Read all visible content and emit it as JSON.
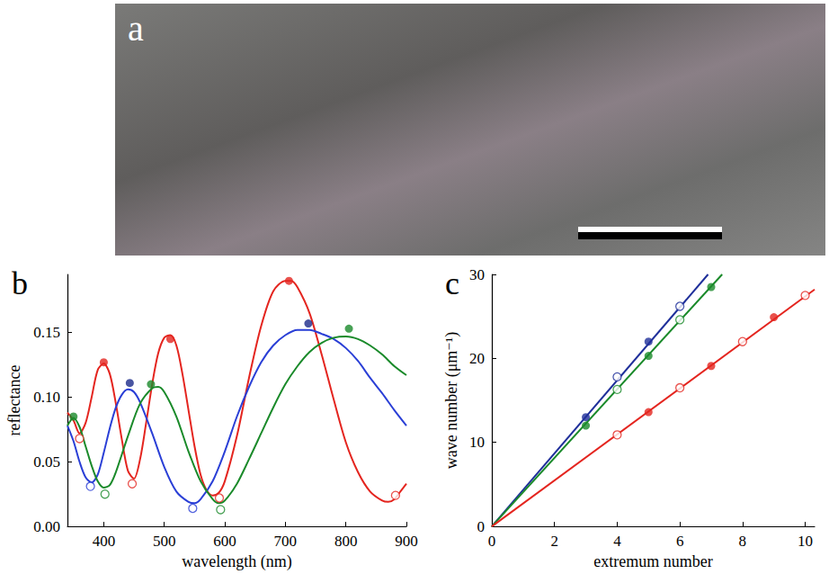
{
  "photo": {
    "label": "a"
  },
  "chart_data": [
    {
      "type": "line",
      "title": "b",
      "x_label": "wavelength (nm)",
      "y_label": "reflectance",
      "xlim": [
        340,
        900
      ],
      "xticks": [
        400,
        500,
        600,
        700,
        800,
        900
      ],
      "ylim": [
        0,
        0.195
      ],
      "yticks": [
        {
          "value": 0,
          "label": "0.00"
        },
        0.05,
        {
          "value": 0.1,
          "label": "0.10"
        },
        0.15
      ],
      "grid": false,
      "series": [
        {
          "type": "line",
          "color": "#e4251f",
          "x": [
            340,
            350,
            360,
            370,
            380,
            390,
            400,
            410,
            420,
            430,
            440,
            450,
            460,
            470,
            480,
            490,
            500,
            510,
            520,
            530,
            540,
            550,
            560,
            570,
            580,
            590,
            600,
            620,
            640,
            660,
            680,
            700,
            710,
            720,
            740,
            760,
            780,
            800,
            820,
            840,
            860,
            870,
            880,
            890,
            900
          ],
          "values": [
            0.088,
            0.082,
            0.072,
            0.08,
            0.1,
            0.121,
            0.126,
            0.118,
            0.095,
            0.067,
            0.043,
            0.037,
            0.052,
            0.08,
            0.11,
            0.134,
            0.146,
            0.148,
            0.14,
            0.118,
            0.09,
            0.062,
            0.04,
            0.028,
            0.024,
            0.026,
            0.035,
            0.07,
            0.115,
            0.155,
            0.182,
            0.19,
            0.19,
            0.185,
            0.165,
            0.133,
            0.098,
            0.065,
            0.042,
            0.027,
            0.02,
            0.019,
            0.021,
            0.027,
            0.033
          ]
        },
        {
          "type": "line",
          "color": "#2a3fd6",
          "x": [
            340,
            350,
            360,
            370,
            380,
            390,
            400,
            410,
            420,
            430,
            440,
            450,
            460,
            480,
            500,
            520,
            540,
            550,
            560,
            580,
            600,
            620,
            640,
            660,
            680,
            700,
            720,
            740,
            760,
            780,
            800,
            820,
            840,
            860,
            880,
            900
          ],
          "values": [
            0.078,
            0.066,
            0.05,
            0.038,
            0.034,
            0.04,
            0.057,
            0.076,
            0.092,
            0.102,
            0.106,
            0.104,
            0.096,
            0.072,
            0.046,
            0.027,
            0.019,
            0.018,
            0.021,
            0.035,
            0.058,
            0.085,
            0.108,
            0.127,
            0.14,
            0.148,
            0.152,
            0.152,
            0.149,
            0.145,
            0.138,
            0.128,
            0.115,
            0.103,
            0.09,
            0.078
          ]
        },
        {
          "type": "line",
          "color": "#1a8a2a",
          "x": [
            340,
            350,
            360,
            370,
            380,
            390,
            400,
            410,
            420,
            440,
            460,
            480,
            490,
            500,
            520,
            540,
            560,
            580,
            590,
            600,
            620,
            640,
            660,
            680,
            700,
            720,
            740,
            760,
            780,
            800,
            820,
            840,
            860,
            880,
            900
          ],
          "values": [
            0.078,
            0.084,
            0.077,
            0.062,
            0.047,
            0.035,
            0.03,
            0.032,
            0.042,
            0.07,
            0.095,
            0.107,
            0.108,
            0.104,
            0.085,
            0.058,
            0.035,
            0.021,
            0.018,
            0.02,
            0.033,
            0.052,
            0.072,
            0.092,
            0.11,
            0.124,
            0.135,
            0.142,
            0.146,
            0.147,
            0.145,
            0.14,
            0.133,
            0.124,
            0.117
          ]
        },
        {
          "type": "scatter",
          "marker": "filled",
          "color": "#e4251f",
          "x": [
            400,
            510,
            706
          ],
          "values": [
            0.127,
            0.145,
            0.19
          ]
        },
        {
          "type": "scatter",
          "marker": "open",
          "color": "#e4251f",
          "x": [
            360,
            447,
            591,
            882
          ],
          "values": [
            0.068,
            0.033,
            0.022,
            0.024
          ]
        },
        {
          "type": "scatter",
          "marker": "filled",
          "color": "#1c2a8a",
          "x": [
            443,
            738
          ],
          "values": [
            0.111,
            0.157
          ]
        },
        {
          "type": "scatter",
          "marker": "open",
          "color": "#2a3fd6",
          "x": [
            378,
            547
          ],
          "values": [
            0.031,
            0.014
          ]
        },
        {
          "type": "scatter",
          "marker": "filled",
          "color": "#1a8a2a",
          "x": [
            350,
            478,
            805
          ],
          "values": [
            0.085,
            0.11,
            0.153
          ]
        },
        {
          "type": "scatter",
          "marker": "open",
          "color": "#1a8a2a",
          "x": [
            402,
            593
          ],
          "values": [
            0.025,
            0.013
          ]
        }
      ]
    },
    {
      "type": "line",
      "title": "c",
      "x_label": "extremum number",
      "y_label": "wave number (μm⁻¹)",
      "xlim": [
        0,
        10.3
      ],
      "xticks": [
        0,
        2,
        4,
        6,
        8,
        10
      ],
      "ylim": [
        0,
        30
      ],
      "yticks": [
        0,
        10,
        20,
        30
      ],
      "grid": false,
      "series": [
        {
          "type": "line",
          "color": "#1f2f9a",
          "x": [
            0,
            6.9
          ],
          "values": [
            0,
            30
          ]
        },
        {
          "type": "line",
          "color": "#1a8a2a",
          "x": [
            0,
            7.35
          ],
          "values": [
            0,
            30
          ]
        },
        {
          "type": "line",
          "color": "#e4251f",
          "x": [
            0,
            10.3
          ],
          "values": [
            0,
            28.2
          ]
        },
        {
          "type": "scatter",
          "marker": "filled",
          "color": "#1f2f9a",
          "x": [
            3,
            5
          ],
          "values": [
            13,
            22
          ]
        },
        {
          "type": "scatter",
          "marker": "open",
          "color": "#1f2f9a",
          "x": [
            4,
            6
          ],
          "values": [
            17.8,
            26.2
          ]
        },
        {
          "type": "scatter",
          "marker": "filled",
          "color": "#1a8a2a",
          "x": [
            3,
            5,
            7
          ],
          "values": [
            12,
            20.3,
            28.5
          ]
        },
        {
          "type": "scatter",
          "marker": "open",
          "color": "#1a8a2a",
          "x": [
            4,
            6
          ],
          "values": [
            16.3,
            24.6
          ]
        },
        {
          "type": "scatter",
          "marker": "filled",
          "color": "#e4251f",
          "x": [
            5,
            7,
            9
          ],
          "values": [
            13.6,
            19.1,
            24.9
          ]
        },
        {
          "type": "scatter",
          "marker": "open",
          "color": "#e4251f",
          "x": [
            4,
            6,
            8,
            10
          ],
          "values": [
            10.9,
            16.5,
            22,
            27.5
          ]
        }
      ]
    }
  ]
}
